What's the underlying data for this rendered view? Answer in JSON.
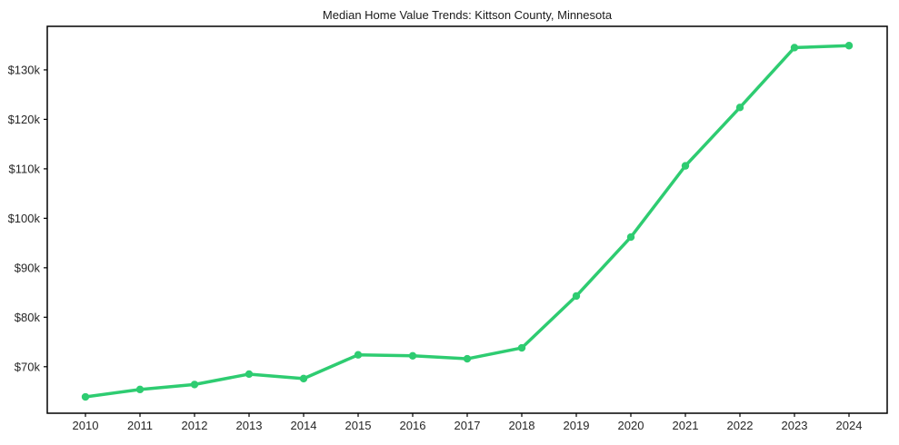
{
  "chart_data": {
    "type": "line",
    "title": "Median Home Value Trends: Kittson County, Minnesota",
    "xlabel": "",
    "ylabel": "",
    "x": [
      2010,
      2011,
      2012,
      2013,
      2014,
      2015,
      2016,
      2017,
      2018,
      2019,
      2020,
      2021,
      2022,
      2023,
      2024
    ],
    "x_tick_labels": [
      "2010",
      "2011",
      "2012",
      "2013",
      "2014",
      "2015",
      "2016",
      "2017",
      "2018",
      "2019",
      "2020",
      "2021",
      "2022",
      "2023",
      "2024"
    ],
    "series": [
      {
        "name": "Median Home Value",
        "values": [
          63900,
          65400,
          66400,
          68500,
          67600,
          72400,
          72200,
          71600,
          73800,
          84300,
          96200,
          110600,
          122400,
          134500,
          134900
        ],
        "color": "#2ecc71",
        "marker": "circle"
      }
    ],
    "y_ticks": [
      {
        "value": 70000,
        "label": "$70k"
      },
      {
        "value": 80000,
        "label": "$80k"
      },
      {
        "value": 90000,
        "label": "$90k"
      },
      {
        "value": 100000,
        "label": "$100k"
      },
      {
        "value": 110000,
        "label": "$110k"
      },
      {
        "value": 120000,
        "label": "$120k"
      },
      {
        "value": 130000,
        "label": "$130k"
      }
    ],
    "xlim": [
      2009.3,
      2024.7
    ],
    "ylim": [
      60600,
      138800
    ],
    "grid": false,
    "legend": "none",
    "colors": {
      "line": "#2ecc71",
      "spine": "#000000",
      "text": "#262626",
      "background": "#ffffff"
    }
  }
}
